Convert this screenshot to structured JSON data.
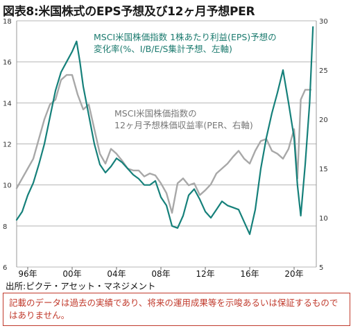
{
  "title": "図表8:米国株式のEPS予想及び12ヶ月予想PER",
  "source": "出所:ピクテ・アセット・マネジメント",
  "disclaimer": "記載のデータは過去の実績であり、将来の運用成果等を示唆あるいは保証するものではありません。",
  "colors": {
    "eps": "#15807a",
    "per": "#a8a8a8",
    "grid": "#b5b5b5",
    "disclaimer": "#c0392b"
  },
  "chart_data": {
    "type": "line",
    "title": "図表8:米国株式のEPS予想及び12ヶ月予想PER",
    "x_ticks": [
      "96年",
      "00年",
      "04年",
      "08年",
      "12年",
      "16年",
      "20年"
    ],
    "x_tick_years": [
      1996,
      2000,
      2004,
      2008,
      2012,
      2016,
      2020
    ],
    "x_range": [
      1995,
      2022
    ],
    "y_left": {
      "range": [
        6,
        18
      ],
      "ticks": [
        6,
        8,
        10,
        12,
        14,
        16,
        18
      ]
    },
    "y_right": {
      "range": [
        5,
        30
      ],
      "ticks": [
        5,
        10,
        15,
        20,
        25,
        30
      ]
    },
    "grid": true,
    "series": [
      {
        "name": "MSCI米国株価指数 1株あたり利益(EPS)予想の変化率(%、I/B/E/S集計予想、左軸)",
        "label_lines": [
          "MSCI米国株価指数 1株あたり利益(EPS)予想の",
          "変化率(%、I/B/E/S集計予想、左軸)"
        ],
        "axis": "left",
        "x": [
          1995.0,
          1995.5,
          1996.0,
          1996.5,
          1997.0,
          1997.5,
          1998.0,
          1998.5,
          1999.0,
          1999.5,
          2000.0,
          2000.4,
          2000.7,
          2001.0,
          2001.5,
          2002.0,
          2002.5,
          2003.0,
          2003.5,
          2004.0,
          2004.5,
          2005.0,
          2005.5,
          2006.0,
          2006.5,
          2007.0,
          2007.5,
          2008.0,
          2008.5,
          2009.0,
          2009.5,
          2010.0,
          2010.5,
          2011.0,
          2011.5,
          2012.0,
          2012.5,
          2013.0,
          2013.5,
          2014.0,
          2014.5,
          2015.0,
          2015.5,
          2016.0,
          2016.5,
          2017.0,
          2017.5,
          2018.0,
          2018.5,
          2019.0,
          2019.5,
          2020.0,
          2020.3,
          2020.6,
          2021.0,
          2021.4,
          2021.7
        ],
        "values": [
          8.3,
          8.7,
          9.5,
          10.1,
          11.0,
          12.0,
          13.3,
          14.6,
          15.5,
          16.0,
          16.5,
          17.0,
          16.0,
          14.8,
          13.4,
          12.0,
          11.0,
          10.6,
          10.9,
          11.3,
          11.1,
          10.8,
          10.5,
          10.3,
          10.0,
          10.0,
          10.2,
          9.4,
          9.0,
          8.0,
          7.9,
          8.5,
          9.5,
          9.8,
          9.3,
          8.7,
          8.4,
          8.8,
          9.2,
          9.0,
          8.9,
          8.8,
          8.2,
          7.6,
          8.8,
          10.8,
          12.3,
          13.5,
          14.5,
          15.6,
          14.0,
          12.3,
          10.0,
          8.5,
          11.0,
          14.0,
          17.7
        ]
      },
      {
        "name": "MSCI米国株価指数の12ヶ月予想株価収益率(PER、右軸)",
        "label_lines": [
          "MSCI米国株価指数の",
          "12ヶ月予想株価収益率(PER、右軸)"
        ],
        "axis": "right",
        "x": [
          1995.0,
          1995.5,
          1996.0,
          1996.5,
          1997.0,
          1997.5,
          1998.0,
          1998.5,
          1999.0,
          1999.5,
          2000.0,
          2000.5,
          2001.0,
          2001.5,
          2002.0,
          2002.5,
          2003.0,
          2003.5,
          2004.0,
          2004.5,
          2005.0,
          2005.5,
          2006.0,
          2006.5,
          2007.0,
          2007.5,
          2008.0,
          2008.5,
          2009.0,
          2009.5,
          2010.0,
          2010.5,
          2011.0,
          2011.5,
          2012.0,
          2012.5,
          2013.0,
          2013.5,
          2014.0,
          2014.5,
          2015.0,
          2015.5,
          2016.0,
          2016.5,
          2017.0,
          2017.5,
          2018.0,
          2018.5,
          2019.0,
          2019.5,
          2020.0,
          2020.3,
          2020.6,
          2021.0,
          2021.5
        ],
        "values": [
          13.0,
          14.0,
          15.0,
          16.0,
          18.0,
          20.0,
          21.5,
          22.0,
          24.0,
          24.5,
          24.5,
          22.5,
          21.0,
          21.5,
          19.0,
          16.5,
          15.5,
          17.0,
          16.5,
          15.8,
          15.0,
          14.8,
          14.8,
          14.2,
          14.5,
          14.3,
          13.5,
          12.5,
          10.5,
          13.5,
          14.0,
          13.3,
          13.5,
          12.3,
          12.8,
          13.4,
          14.5,
          15.0,
          15.5,
          16.2,
          16.8,
          16.0,
          15.5,
          16.8,
          17.8,
          18.0,
          16.8,
          16.5,
          16.0,
          17.0,
          19.0,
          14.0,
          22.0,
          23.0,
          23.0
        ]
      }
    ]
  }
}
